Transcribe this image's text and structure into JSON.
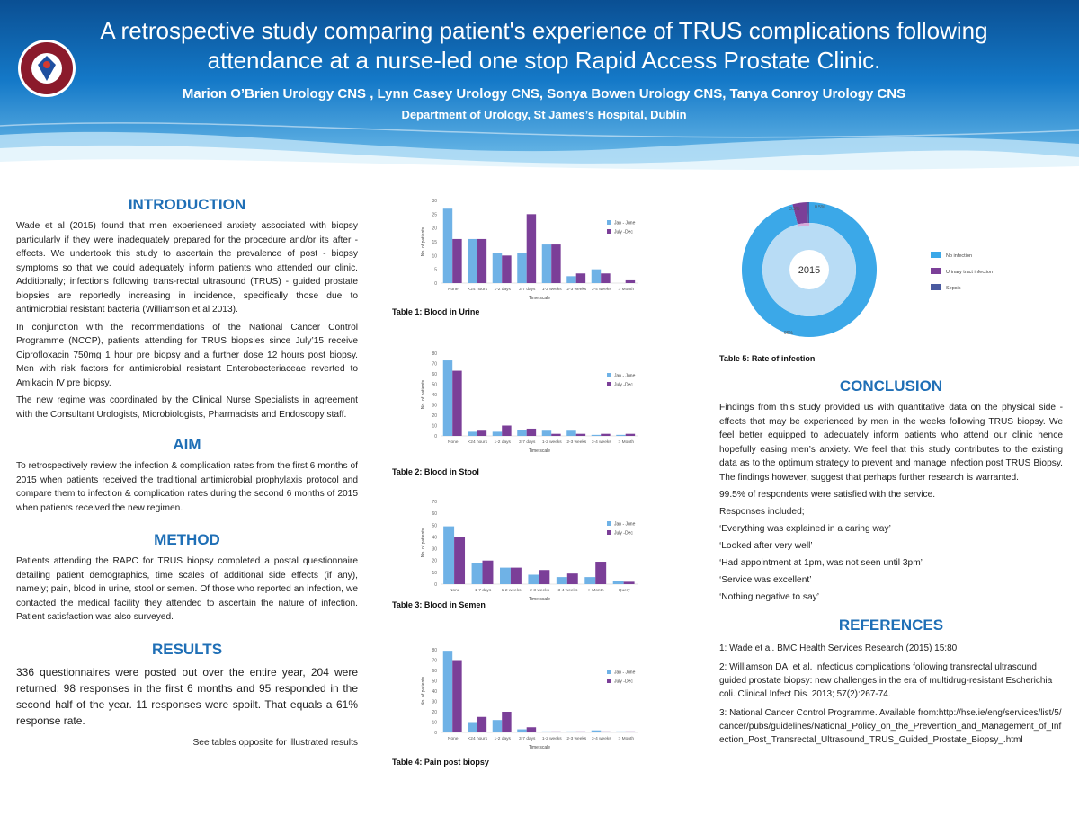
{
  "header": {
    "title_line1": "A retrospective study comparing patient's experience of TRUS complications following",
    "title_line2": "attendance at a nurse-led one stop Rapid Access Prostate Clinic.",
    "authors": "Marion O’Brien Urology CNS , Lynn Casey Urology CNS, Sonya Bowen Urology CNS, Tanya Conroy Urology CNS",
    "department": "Department of Urology, St James’s Hospital, Dublin",
    "logo_text": "Ospidéal Naomh Séamus"
  },
  "introduction": {
    "heading": "INTRODUCTION",
    "p1": "Wade et al (2015) found that men experienced anxiety associated with biopsy particularly if they were inadequately prepared for the procedure and/or its after - effects. We undertook this study to ascertain the prevalence of post - biopsy symptoms so that we could adequately inform patients who attended our clinic. Additionally; infections following trans-rectal ultrasound (TRUS) - guided prostate biopsies are reportedly increasing in incidence, specifically those due to antimicrobial resistant bacteria (Williamson et al 2013).",
    "p2": "In conjunction with the recommendations of the National Cancer Control Programme (NCCP), patients attending for TRUS biopsies since July’15 receive Ciprofloxacin 750mg 1 hour pre biopsy and a further dose 12 hours post biopsy. Men with risk factors for antimicrobial resistant Enterobacteriaceae reverted to Amikacin IV pre biopsy.",
    "p3": "The new regime was coordinated by the Clinical Nurse Specialists in agreement with the Consultant Urologists, Microbiologists, Pharmacists and Endoscopy staff."
  },
  "aim": {
    "heading": "AIM",
    "p1": "To retrospectively review the infection & complication rates from the first 6 months of 2015 when patients received the traditional antimicrobial prophylaxis protocol and compare them to infection & complication rates during the second 6 months of 2015 when patients received the new regimen."
  },
  "method": {
    "heading": "METHOD",
    "p1": "Patients attending the RAPC for TRUS biopsy completed a postal questionnaire detailing patient demographics, time scales of additional side effects (if any), namely; pain, blood in urine, stool or semen. Of those who reported an infection, we contacted the medical facility they attended to ascertain the nature of infection. Patient satisfaction was also surveyed."
  },
  "results": {
    "heading": "RESULTS",
    "p1": "336 questionnaires were posted out over the entire year, 204 were returned; 98 responses in the first 6 months and 95 responded in the second half of the year. 11 responses were spoilt. That equals a 61% response rate.",
    "see": "See tables opposite for illustrated results"
  },
  "conclusion": {
    "heading": "CONCLUSION",
    "p1": "Findings from this study provided us with quantitative data on the physical side - effects that may be experienced by men in the weeks following TRUS biopsy. We feel better equipped to adequately inform patients who attend our clinic hence hopefully easing men’s anxiety. We feel that this study contributes to the existing data as to the optimum strategy to prevent and manage infection post TRUS Biopsy. The findings however, suggest that perhaps further research is warranted.",
    "p2": "99.5% of respondents were satisfied with the service.",
    "p3": "Responses included;",
    "quotes": [
      "‘Everything was explained in a caring way’",
      "‘Looked after very well’",
      "‘Had appointment at 1pm, was not seen until 3pm’",
      "‘Service was excellent’",
      "‘Nothing negative to say’"
    ]
  },
  "references": {
    "heading": "REFERENCES",
    "items": [
      "1: Wade et al. BMC Health Services Research (2015) 15:80",
      "2: Williamson DA, et al. Infectious complications following transrectal ultrasound guided prostate biopsy: new challenges in the era of multidrug-resistant Escherichia coli. Clinical Infect Dis. 2013; 57(2):267-74.",
      "3: National Cancer Control Programme. Available from:http://hse.ie/eng/services/list/5/cancer/pubs/guidelines/National_Policy_on_the_Prevention_and_Management_of_Infection_Post_Transrectal_Ultrasound_TRUS_Guided_Prostate_Biopsy_.html"
    ]
  },
  "colors": {
    "jan_june": "#6fb2e6",
    "july_dec": "#7b3f98",
    "heading": "#1f6fb6"
  },
  "chart_data": [
    {
      "type": "bar",
      "caption": "Table 1: Blood in Urine",
      "categories": [
        "None",
        "<24 hours",
        "1-2 days",
        "3-7 days",
        "1-2 weeks",
        "2-3 weeks",
        "3-4 weeks",
        "> Month"
      ],
      "series": [
        {
          "name": "Jan - June",
          "values": [
            27,
            16,
            11,
            11,
            14,
            2.5,
            5,
            0
          ]
        },
        {
          "name": "July -Dec",
          "values": [
            16,
            16,
            10,
            25,
            14,
            3.5,
            3.5,
            1
          ]
        }
      ],
      "ylim": [
        0,
        30
      ],
      "yticks": [
        0,
        5,
        10,
        15,
        20,
        25,
        30
      ],
      "xlabel": "Time scale",
      "ylabel": "No. of patients"
    },
    {
      "type": "bar",
      "caption": "Table 2: Blood in Stool",
      "categories": [
        "None",
        "<24 hours",
        "1-2 days",
        "3-7 days",
        "1-2 weeks",
        "2-3 weeks",
        "3-4 weeks",
        "> Month"
      ],
      "series": [
        {
          "name": "Jan - June",
          "values": [
            73,
            4,
            4,
            6,
            5,
            5,
            1,
            1
          ]
        },
        {
          "name": "July -Dec",
          "values": [
            63,
            5,
            10,
            7,
            2,
            2,
            2,
            2
          ]
        }
      ],
      "ylim": [
        0,
        80
      ],
      "yticks": [
        0,
        10,
        20,
        30,
        40,
        50,
        60,
        70,
        80
      ],
      "xlabel": "Time scale",
      "ylabel": "No. of patients"
    },
    {
      "type": "bar",
      "caption": "Table 3: Blood in Semen",
      "categories": [
        "None",
        "1-7 days",
        "1-2 weeks",
        "2-3 weeks",
        "3-4 weeks",
        "> Month",
        "Query"
      ],
      "series": [
        {
          "name": "Jan - June",
          "values": [
            49,
            18,
            14,
            8,
            6,
            6,
            3
          ]
        },
        {
          "name": "July -Dec",
          "values": [
            40,
            20,
            14,
            12,
            9,
            19,
            2
          ]
        }
      ],
      "ylim": [
        0,
        70
      ],
      "yticks": [
        0,
        10,
        20,
        30,
        40,
        50,
        60,
        70
      ],
      "xlabel": "Time scale",
      "ylabel": "No. of patients"
    },
    {
      "type": "bar",
      "caption": "Table 4: Pain post biopsy",
      "categories": [
        "None",
        "<24 hours",
        "1-2 days",
        "3-7 days",
        "1-2 weeks",
        "2-3 weeks",
        "3-4 weeks",
        "> Month"
      ],
      "series": [
        {
          "name": "Jan - June",
          "values": [
            79,
            10,
            12,
            3,
            1,
            1,
            2,
            1
          ]
        },
        {
          "name": "July -Dec",
          "values": [
            70,
            15,
            20,
            5,
            1,
            1,
            1,
            1
          ]
        }
      ],
      "ylim": [
        0,
        80
      ],
      "yticks": [
        0,
        10,
        20,
        30,
        40,
        50,
        60,
        70,
        80
      ],
      "xlabel": "Time scale",
      "ylabel": "No. of patients"
    },
    {
      "type": "pie",
      "caption": "Table 5: Rate of infection",
      "center_label": "2015",
      "categories": [
        "No infection",
        "Urinary tract infection",
        "Sepsis"
      ],
      "values": [
        96,
        3.5,
        0.5
      ],
      "labels": [
        "96%",
        "3.5%",
        "0.5%"
      ]
    }
  ]
}
